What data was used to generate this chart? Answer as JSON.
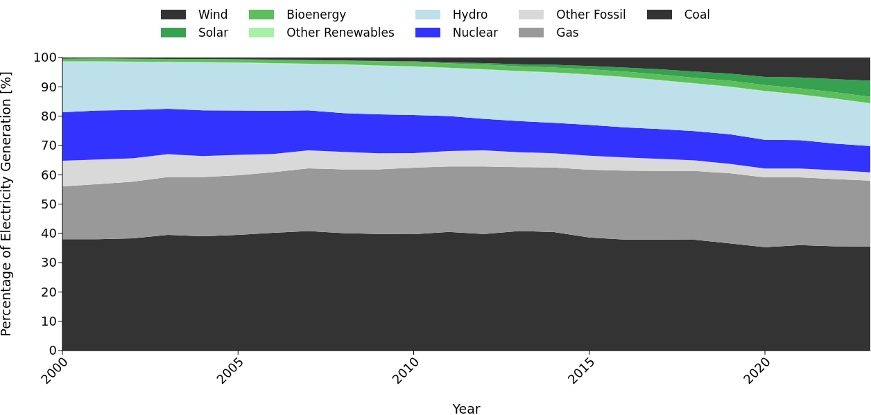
{
  "chart_data": {
    "type": "area",
    "stacked": true,
    "xlabel": "Year",
    "ylabel": "Percentage of Electricity Generation [%]",
    "legend": "top",
    "x": [
      2000,
      2001,
      2002,
      2003,
      2004,
      2005,
      2006,
      2007,
      2008,
      2009,
      2010,
      2011,
      2012,
      2013,
      2014,
      2015,
      2016,
      2017,
      2018,
      2019,
      2020,
      2021,
      2022,
      2023
    ],
    "xlim": [
      2000,
      2023
    ],
    "xticks": [
      2000,
      2005,
      2010,
      2015,
      2020
    ],
    "ylim": [
      0,
      100
    ],
    "yticks": [
      0,
      10,
      20,
      30,
      40,
      50,
      60,
      70,
      80,
      90,
      100
    ],
    "series": [
      {
        "name": "Coal",
        "color": "#333333",
        "values": [
          38,
          38,
          38.3,
          39.5,
          39,
          39.5,
          40.2,
          40.8,
          40.1,
          39.8,
          39.7,
          40.5,
          39.8,
          40.8,
          40.4,
          38.6,
          37.9,
          37.9,
          37.8,
          36.6,
          35.3,
          36,
          35.6,
          35.5
        ]
      },
      {
        "name": "Gas",
        "color": "#999999",
        "values": [
          18,
          18.8,
          19.3,
          19.7,
          20.2,
          20.3,
          20.7,
          21.4,
          21.7,
          22,
          22.7,
          22.3,
          23,
          21.8,
          22.1,
          23.1,
          23.5,
          23.4,
          23.5,
          23.9,
          23.8,
          23.1,
          22.9,
          22.5
        ]
      },
      {
        "name": "Other Fossil",
        "color": "#d9d9d9",
        "values": [
          8.8,
          8.4,
          8,
          7.8,
          7.2,
          7,
          6.2,
          6.1,
          6,
          5.5,
          5,
          5.3,
          5.5,
          5.1,
          4.8,
          4.8,
          4.5,
          4.1,
          3.6,
          3.2,
          3,
          3,
          3,
          2.8
        ]
      },
      {
        "name": "Nuclear",
        "color": "#3333ff",
        "values": [
          16.5,
          16.7,
          16.5,
          15.5,
          15.6,
          15.1,
          14.7,
          13.7,
          13.2,
          13.3,
          13,
          11.9,
          10.8,
          10.6,
          10.4,
          10.5,
          10.3,
          10.2,
          10,
          10.1,
          9.8,
          9.7,
          9.1,
          9
        ]
      },
      {
        "name": "Hydro",
        "color": "#bde0ea",
        "values": [
          17.2,
          16.6,
          16.3,
          15.8,
          16.2,
          16.2,
          16.1,
          15.7,
          16.5,
          16.5,
          16.4,
          16.3,
          16.7,
          16.9,
          17,
          17,
          17,
          16.5,
          16.1,
          16.1,
          16.5,
          15.4,
          15.2,
          14.4
        ]
      },
      {
        "name": "Other Renewables",
        "color": "#a8f0a8",
        "values": [
          0.2,
          0.2,
          0.2,
          0.2,
          0.2,
          0.2,
          0.2,
          0.2,
          0.2,
          0.2,
          0.2,
          0.2,
          0.2,
          0.2,
          0.2,
          0.2,
          0.2,
          0.2,
          0.2,
          0.2,
          0.2,
          0.2,
          0.2,
          0.2
        ]
      },
      {
        "name": "Bioenergy",
        "color": "#5cbf5c",
        "values": [
          0.9,
          1,
          1,
          1,
          1.1,
          1.1,
          1.2,
          1.2,
          1.3,
          1.4,
          1.5,
          1.5,
          1.6,
          1.6,
          1.7,
          1.8,
          1.8,
          1.9,
          1.9,
          2,
          2,
          2.1,
          2.1,
          2.2
        ]
      },
      {
        "name": "Solar",
        "color": "#36a150",
        "values": [
          0,
          0,
          0,
          0,
          0,
          0,
          0,
          0,
          0,
          0.1,
          0.2,
          0.3,
          0.5,
          0.7,
          0.9,
          1.1,
          1.4,
          1.8,
          2.1,
          2.4,
          2.8,
          3.7,
          4.5,
          5.5
        ]
      },
      {
        "name": "Wind",
        "color": "#333333",
        "values": [
          0.4,
          0.3,
          0.4,
          0.5,
          0.5,
          0.6,
          0.7,
          0.9,
          1,
          1.2,
          1.3,
          1.7,
          1.9,
          2.3,
          2.5,
          2.9,
          3.4,
          4,
          4.8,
          5.5,
          6.6,
          6.8,
          7.4,
          7.9
        ]
      }
    ]
  }
}
